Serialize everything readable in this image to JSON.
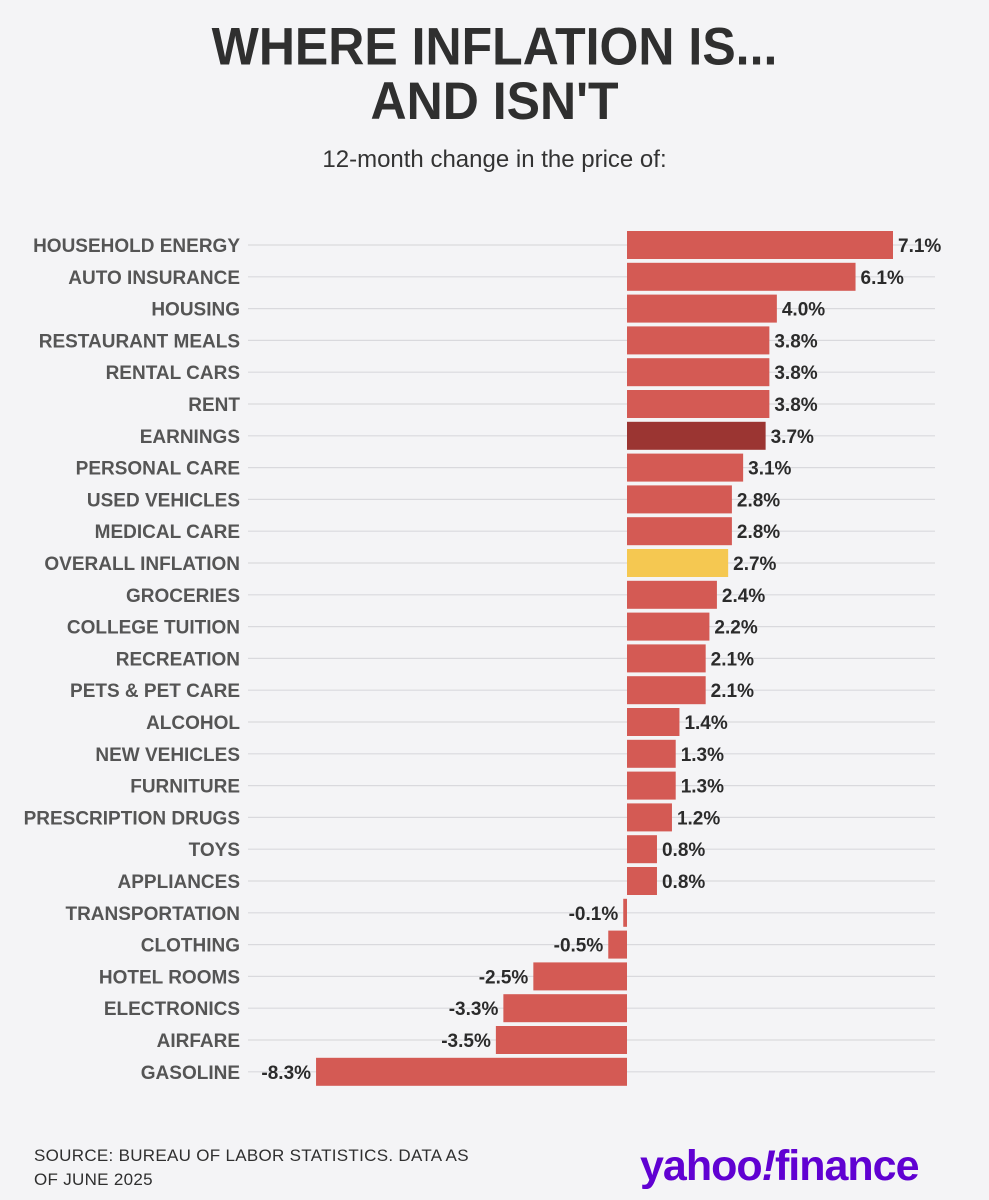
{
  "header": {
    "title_line1": "WHERE INFLATION IS...",
    "title_line2": "AND ISN'T",
    "subtitle": "12-month change in the price of:"
  },
  "footer": {
    "source_line1": "SOURCE: BUREAU OF LABOR STATISTICS. DATA AS",
    "source_line2": "OF JUNE 2025",
    "logo_part1": "yahoo",
    "logo_part2": "!",
    "logo_part3": "finance"
  },
  "colors": {
    "bar": "#d45a54",
    "highlight_dark": "#9b3532",
    "highlight_yellow": "#f5c851",
    "gridline": "#d9d9dd",
    "label": "#555555",
    "value": "#2b2b2b",
    "logo": "#6001d2"
  },
  "chart_data": {
    "type": "bar",
    "orientation": "horizontal",
    "title": "WHERE INFLATION IS... AND ISN'T",
    "subtitle": "12-month change in the price of:",
    "unit": "%",
    "xlim": [
      -8.3,
      7.1
    ],
    "categories": [
      "HOUSEHOLD ENERGY",
      "AUTO INSURANCE",
      "HOUSING",
      "RESTAURANT MEALS",
      "RENTAL CARS",
      "RENT",
      "EARNINGS",
      "PERSONAL CARE",
      "USED VEHICLES",
      "MEDICAL CARE",
      "OVERALL INFLATION",
      "GROCERIES",
      "COLLEGE TUITION",
      "RECREATION",
      "PETS & PET CARE",
      "ALCOHOL",
      "NEW VEHICLES",
      "FURNITURE",
      "PRESCRIPTION DRUGS",
      "TOYS",
      "APPLIANCES",
      "TRANSPORTATION",
      "CLOTHING",
      "HOTEL ROOMS",
      "ELECTRONICS",
      "AIRFARE",
      "GASOLINE"
    ],
    "values": [
      7.1,
      6.1,
      4.0,
      3.8,
      3.8,
      3.8,
      3.7,
      3.1,
      2.8,
      2.8,
      2.7,
      2.4,
      2.2,
      2.1,
      2.1,
      1.4,
      1.3,
      1.3,
      1.2,
      0.8,
      0.8,
      -0.1,
      -0.5,
      -2.5,
      -3.3,
      -3.5,
      -8.3
    ],
    "value_labels": [
      "7.1%",
      "6.1%",
      "4.0%",
      "3.8%",
      "3.8%",
      "3.8%",
      "3.7%",
      "3.1%",
      "2.8%",
      "2.8%",
      "2.7%",
      "2.4%",
      "2.2%",
      "2.1%",
      "2.1%",
      "1.4%",
      "1.3%",
      "1.3%",
      "1.2%",
      "0.8%",
      "0.8%",
      "-0.1%",
      "-0.5%",
      "-2.5%",
      "-3.3%",
      "-3.5%",
      "-8.3%"
    ],
    "highlights": {
      "EARNINGS": "dark",
      "OVERALL INFLATION": "yellow"
    }
  }
}
